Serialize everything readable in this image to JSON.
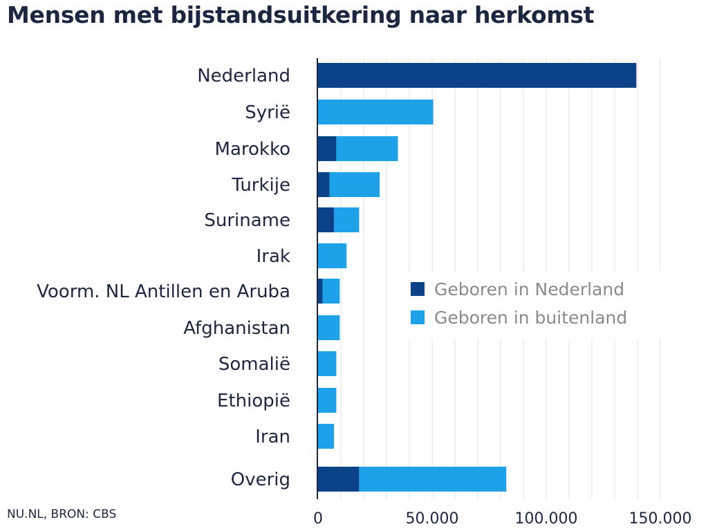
{
  "chart_data": {
    "type": "bar",
    "orientation": "horizontal",
    "stacked": true,
    "title": "Mensen met bijstandsuitkering naar herkomst",
    "xlabel": "",
    "ylabel": "",
    "categories": [
      "Nederland",
      "Syrië",
      "Marokko",
      "Turkije",
      "Suriname",
      "Irak",
      "Voorm. NL Antillen en Aruba",
      "Afghanistan",
      "Somalië",
      "Ethiopië",
      "Iran",
      "Overig"
    ],
    "series": [
      {
        "name": "Geboren in Nederland",
        "color": "#0c4288",
        "values": [
          139500,
          0,
          8000,
          5000,
          7000,
          0,
          2000,
          0,
          0,
          0,
          0,
          18000
        ]
      },
      {
        "name": "Geboren in buitenland",
        "color": "#1da1e8",
        "values": [
          0,
          50500,
          27000,
          22000,
          11000,
          12500,
          7500,
          9500,
          8000,
          8000,
          7000,
          64500
        ]
      }
    ],
    "xlim": [
      0,
      150000
    ],
    "xticks": [
      0,
      50000,
      100000,
      150000
    ],
    "xtick_labels": [
      "0",
      "50.000",
      "100.000",
      "150.000"
    ],
    "grid": true,
    "legend_position": "center-right"
  },
  "footer": {
    "source": "NU.NL, BRON: CBS"
  }
}
